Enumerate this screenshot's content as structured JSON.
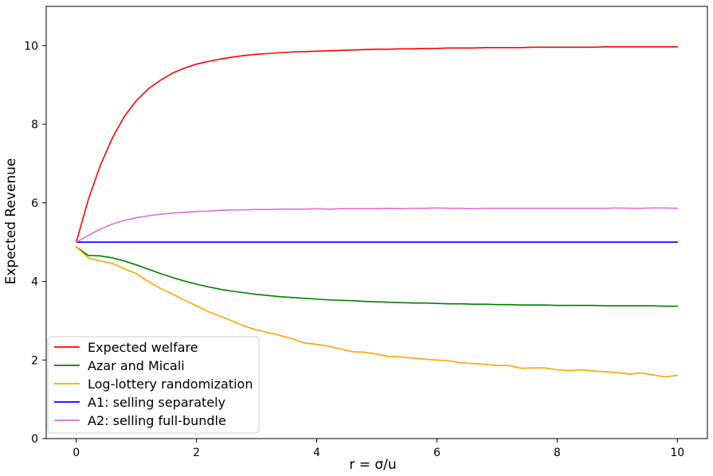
{
  "chart_data": {
    "type": "line",
    "title": "",
    "xlabel": "r = σ/u",
    "ylabel": "Expected Revenue",
    "xlim": [
      -0.5,
      10.5
    ],
    "ylim": [
      0,
      11
    ],
    "xticks": [
      0,
      2,
      4,
      6,
      8,
      10
    ],
    "yticks": [
      0,
      2,
      4,
      6,
      8,
      10
    ],
    "grid": false,
    "legend_position": "bottom-left",
    "x": [
      0,
      0.2,
      0.4,
      0.6,
      0.8,
      1.0,
      1.2,
      1.4,
      1.6,
      1.8,
      2.0,
      2.2,
      2.4,
      2.6,
      2.8,
      3.0,
      3.2,
      3.4,
      3.6,
      3.8,
      4.0,
      4.2,
      4.4,
      4.6,
      4.8,
      5.0,
      5.2,
      5.4,
      5.6,
      5.8,
      6.0,
      6.2,
      6.4,
      6.6,
      6.8,
      7.0,
      7.2,
      7.4,
      7.6,
      7.8,
      8.0,
      8.2,
      8.4,
      8.6,
      8.8,
      9.0,
      9.2,
      9.4,
      9.6,
      9.8,
      10.0
    ],
    "series": [
      {
        "name": "Expected welfare",
        "color": "#ff0000",
        "values": [
          5.0,
          6.08,
          6.95,
          7.65,
          8.2,
          8.6,
          8.9,
          9.12,
          9.3,
          9.43,
          9.53,
          9.6,
          9.66,
          9.71,
          9.75,
          9.78,
          9.8,
          9.82,
          9.84,
          9.85,
          9.86,
          9.87,
          9.88,
          9.89,
          9.9,
          9.91,
          9.91,
          9.92,
          9.92,
          9.93,
          9.93,
          9.94,
          9.94,
          9.94,
          9.95,
          9.95,
          9.95,
          9.95,
          9.96,
          9.96,
          9.96,
          9.96,
          9.96,
          9.96,
          9.97,
          9.97,
          9.97,
          9.97,
          9.97,
          9.97,
          9.97
        ]
      },
      {
        "name": "Azar and Micali",
        "color": "#008000",
        "values": [
          4.88,
          4.66,
          4.65,
          4.6,
          4.52,
          4.42,
          4.31,
          4.2,
          4.1,
          4.01,
          3.93,
          3.86,
          3.8,
          3.75,
          3.71,
          3.67,
          3.64,
          3.61,
          3.59,
          3.57,
          3.55,
          3.53,
          3.52,
          3.51,
          3.49,
          3.48,
          3.47,
          3.46,
          3.45,
          3.45,
          3.44,
          3.43,
          3.43,
          3.42,
          3.42,
          3.41,
          3.41,
          3.4,
          3.4,
          3.4,
          3.39,
          3.39,
          3.39,
          3.39,
          3.38,
          3.38,
          3.38,
          3.38,
          3.38,
          3.37,
          3.37
        ]
      },
      {
        "name": "Log-lottery randomization",
        "color": "#ffa500",
        "values": [
          4.88,
          4.6,
          4.52,
          4.46,
          4.32,
          4.2,
          4.0,
          3.82,
          3.68,
          3.52,
          3.38,
          3.23,
          3.11,
          2.99,
          2.86,
          2.77,
          2.7,
          2.62,
          2.54,
          2.43,
          2.4,
          2.35,
          2.28,
          2.21,
          2.2,
          2.15,
          2.09,
          2.08,
          2.05,
          2.02,
          2.0,
          1.98,
          1.93,
          1.91,
          1.89,
          1.86,
          1.86,
          1.79,
          1.8,
          1.8,
          1.75,
          1.73,
          1.75,
          1.72,
          1.7,
          1.68,
          1.64,
          1.67,
          1.62,
          1.57,
          1.61
        ]
      },
      {
        "name": "A1: selling separately",
        "color": "#0000ff",
        "values": [
          5.0,
          5.0,
          5.0,
          5.0,
          5.0,
          5.0,
          5.0,
          5.0,
          5.0,
          5.0,
          5.0,
          5.0,
          5.0,
          5.0,
          5.0,
          5.0,
          5.0,
          5.0,
          5.0,
          5.0,
          5.0,
          5.0,
          5.0,
          5.0,
          5.0,
          5.0,
          5.0,
          5.0,
          5.0,
          5.0,
          5.0,
          5.0,
          5.0,
          5.0,
          5.0,
          5.0,
          5.0,
          5.0,
          5.0,
          5.0,
          5.0,
          5.0,
          5.0,
          5.0,
          5.0,
          5.0,
          5.0,
          5.0,
          5.0,
          5.0,
          5.0
        ]
      },
      {
        "name": "A2: selling full-bundle",
        "color": "#da70d6",
        "values": [
          5.0,
          5.17,
          5.33,
          5.46,
          5.55,
          5.62,
          5.67,
          5.71,
          5.74,
          5.76,
          5.78,
          5.79,
          5.81,
          5.82,
          5.82,
          5.83,
          5.83,
          5.84,
          5.84,
          5.84,
          5.85,
          5.84,
          5.85,
          5.85,
          5.85,
          5.85,
          5.86,
          5.85,
          5.86,
          5.86,
          5.87,
          5.86,
          5.86,
          5.85,
          5.86,
          5.86,
          5.86,
          5.86,
          5.86,
          5.86,
          5.86,
          5.86,
          5.86,
          5.86,
          5.86,
          5.87,
          5.86,
          5.86,
          5.87,
          5.87,
          5.86
        ]
      }
    ]
  }
}
